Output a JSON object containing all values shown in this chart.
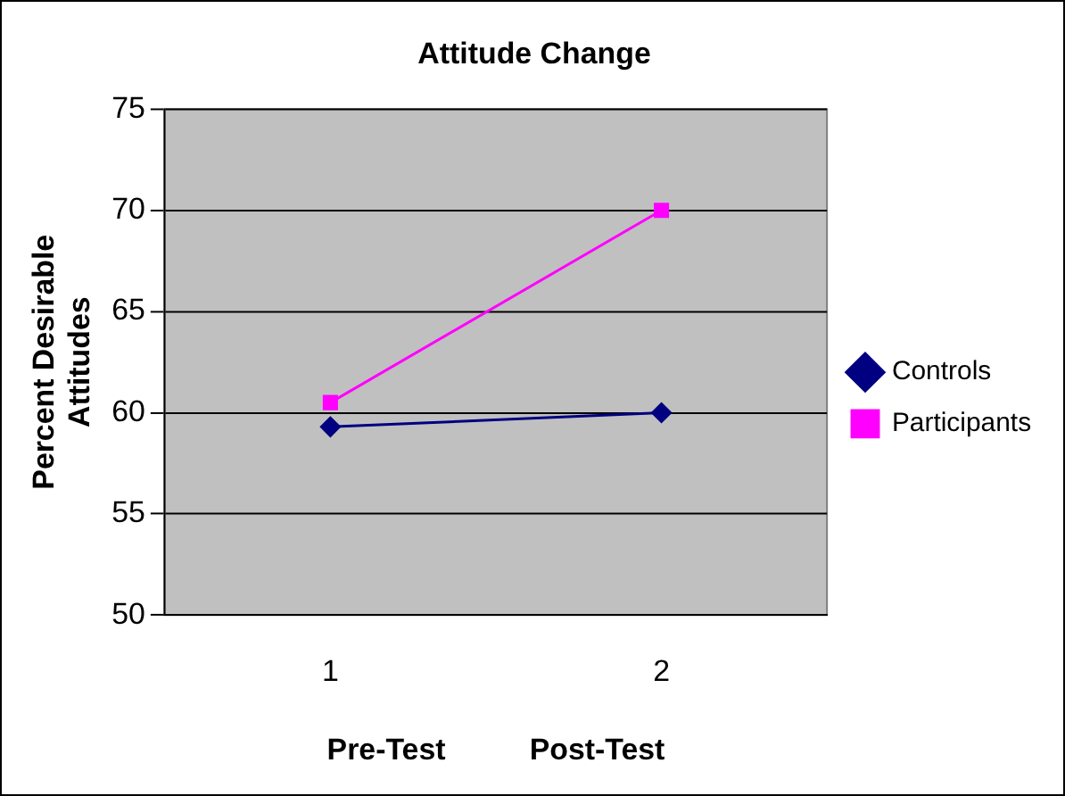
{
  "chart_data": {
    "type": "line",
    "title": "Attitude Change",
    "xlabel": "Pre-Test          Post-Test",
    "ylabel": "Percent Desirable Attitudes",
    "categories": [
      "1",
      "2"
    ],
    "series": [
      {
        "name": "Controls",
        "color": "#000080",
        "values": [
          59.3,
          60
        ],
        "marker": "diamond"
      },
      {
        "name": "Participants",
        "color": "#ff00ff",
        "values": [
          60.5,
          70
        ],
        "marker": "square"
      }
    ],
    "ylim": [
      50,
      75
    ],
    "yticks": [
      50,
      55,
      60,
      65,
      70,
      75
    ],
    "grid": "y",
    "legend": "right",
    "line_style": "solid"
  }
}
